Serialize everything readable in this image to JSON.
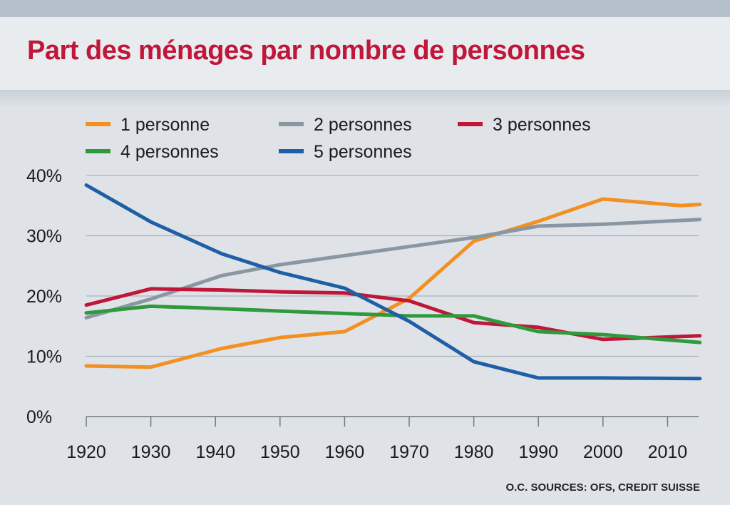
{
  "title": "Part des ménages par nombre de personnes",
  "source": "O.C. SOURCES: OFS, CREDIT SUISSE",
  "colors": {
    "title": "#c0163a",
    "series": [
      "#f39021",
      "#8997a3",
      "#c0163a",
      "#2f9a3c",
      "#1f5fa5"
    ]
  },
  "chart_data": {
    "type": "line",
    "title": "Part des ménages par nombre de personnes",
    "xlabel": "",
    "ylabel": "",
    "xlim": [
      1920,
      2015
    ],
    "ylim": [
      0,
      40
    ],
    "x_ticks": [
      "1920",
      "1930",
      "1940",
      "1950",
      "1960",
      "1970",
      "1980",
      "1990",
      "2000",
      "2010"
    ],
    "y_ticks": [
      "0%",
      "10%",
      "20%",
      "30%",
      "40%"
    ],
    "grid": true,
    "legend": "top",
    "series": [
      {
        "name": "1 personne",
        "points": [
          [
            1920,
            8.4
          ],
          [
            1930,
            8.2
          ],
          [
            1941,
            11.3
          ],
          [
            1950,
            13.1
          ],
          [
            1960,
            14.1
          ],
          [
            1970,
            19.6
          ],
          [
            1980,
            29.1
          ],
          [
            1990,
            32.4
          ],
          [
            2000,
            36.1
          ],
          [
            2012,
            35.0
          ],
          [
            2015,
            35.2
          ]
        ]
      },
      {
        "name": "2 personnes",
        "points": [
          [
            1920,
            16.4
          ],
          [
            1930,
            19.5
          ],
          [
            1941,
            23.4
          ],
          [
            1950,
            25.2
          ],
          [
            1960,
            26.7
          ],
          [
            1970,
            28.2
          ],
          [
            1980,
            29.7
          ],
          [
            1990,
            31.6
          ],
          [
            2000,
            31.9
          ],
          [
            2015,
            32.7
          ]
        ]
      },
      {
        "name": "3 personnes",
        "points": [
          [
            1920,
            18.5
          ],
          [
            1930,
            21.2
          ],
          [
            1941,
            21.0
          ],
          [
            1950,
            20.7
          ],
          [
            1960,
            20.5
          ],
          [
            1970,
            19.2
          ],
          [
            1980,
            15.6
          ],
          [
            1990,
            14.8
          ],
          [
            2000,
            12.8
          ],
          [
            2015,
            13.4
          ]
        ]
      },
      {
        "name": "4 personnes",
        "points": [
          [
            1920,
            17.2
          ],
          [
            1930,
            18.3
          ],
          [
            1941,
            17.9
          ],
          [
            1950,
            17.5
          ],
          [
            1960,
            17.1
          ],
          [
            1970,
            16.7
          ],
          [
            1980,
            16.7
          ],
          [
            1990,
            14.1
          ],
          [
            2000,
            13.6
          ],
          [
            2015,
            12.3
          ]
        ]
      },
      {
        "name": "5 personnes",
        "points": [
          [
            1920,
            38.4
          ],
          [
            1930,
            32.3
          ],
          [
            1941,
            27.0
          ],
          [
            1950,
            23.9
          ],
          [
            1960,
            21.3
          ],
          [
            1970,
            15.8
          ],
          [
            1980,
            9.1
          ],
          [
            1990,
            6.4
          ],
          [
            2000,
            6.4
          ],
          [
            2015,
            6.3
          ]
        ]
      }
    ]
  }
}
